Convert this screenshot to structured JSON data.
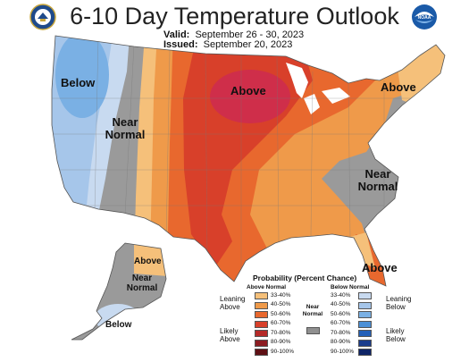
{
  "header": {
    "title": "6-10 Day Temperature Outlook",
    "valid_label": "Valid:",
    "valid_value": "September 26 - 30, 2023",
    "issued_label": "Issued:",
    "issued_value": "September 20, 2023"
  },
  "logos": {
    "left": "seal-icon",
    "right": "noaa-logo-icon",
    "right_text": "NOAA"
  },
  "map_labels": {
    "below_west": "Below",
    "near_west_1": "Near",
    "near_west_2": "Normal",
    "above_midwest": "Above",
    "above_northeast": "Above",
    "near_southeast_1": "Near",
    "near_southeast_2": "Normal",
    "above_florida": "Above",
    "above_alaska": "Above",
    "near_alaska_1": "Near",
    "near_alaska_2": "Normal",
    "below_alaska": "Below"
  },
  "legend": {
    "title": "Probability (Percent Chance)",
    "above_heading": "Above Normal",
    "below_heading": "Below Normal",
    "near_1": "Near",
    "near_2": "Normal",
    "near_color": "#909090",
    "leaning_above_1": "Leaning",
    "leaning_above_2": "Above",
    "likely_above_1": "Likely",
    "likely_above_2": "Above",
    "leaning_below_1": "Leaning",
    "leaning_below_2": "Below",
    "likely_below_1": "Likely",
    "likely_below_2": "Below",
    "above": [
      {
        "label": "33-40%",
        "color": "#f5c07a"
      },
      {
        "label": "40-50%",
        "color": "#ef9a4a"
      },
      {
        "label": "50-60%",
        "color": "#e8682e"
      },
      {
        "label": "60-70%",
        "color": "#d8402a"
      },
      {
        "label": "70-80%",
        "color": "#b52a28"
      },
      {
        "label": "80-90%",
        "color": "#8c1c22"
      },
      {
        "label": "90-100%",
        "color": "#5e0f14"
      }
    ],
    "below": [
      {
        "label": "33-40%",
        "color": "#c8daf0"
      },
      {
        "label": "40-50%",
        "color": "#a6c6ea"
      },
      {
        "label": "50-60%",
        "color": "#7ab0e4"
      },
      {
        "label": "60-70%",
        "color": "#4a8fd6"
      },
      {
        "label": "70-80%",
        "color": "#2460b8"
      },
      {
        "label": "80-90%",
        "color": "#1a3c8c"
      },
      {
        "label": "90-100%",
        "color": "#0e2466"
      }
    ]
  }
}
